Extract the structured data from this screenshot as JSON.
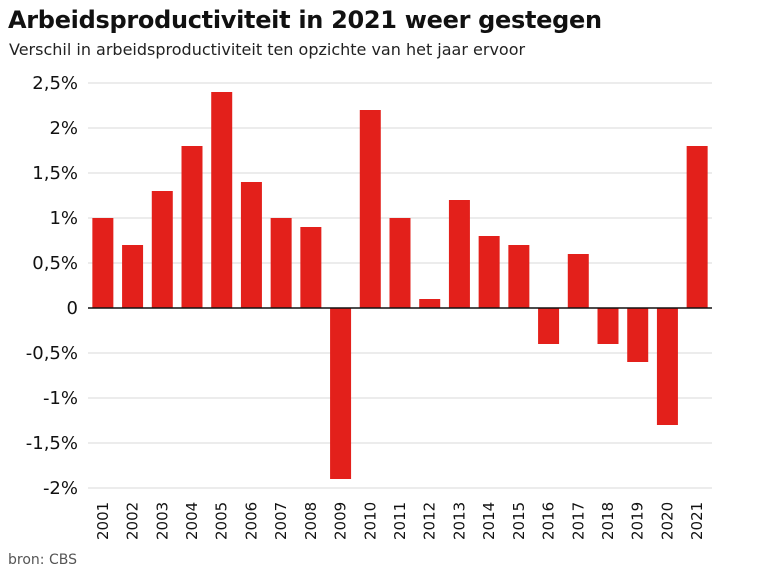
{
  "title": "Arbeidsproductiviteit in 2021 weer gestegen",
  "subtitle": "Verschil in arbeidsproductiviteit ten opzichte van het jaar ervoor",
  "source": "bron: CBS",
  "colors": {
    "bar": "#e3201b",
    "grid": "#d9d9d9",
    "axis": "#111111"
  },
  "chart_data": {
    "type": "bar",
    "categories": [
      "2001",
      "2002",
      "2003",
      "2004",
      "2005",
      "2006",
      "2007",
      "2008",
      "2009",
      "2010",
      "2011",
      "2012",
      "2013",
      "2014",
      "2015",
      "2016",
      "2017",
      "2018",
      "2019",
      "2020",
      "2021"
    ],
    "values": [
      1.0,
      0.7,
      1.3,
      1.8,
      2.4,
      1.4,
      1.0,
      0.9,
      -1.9,
      2.2,
      1.0,
      0.1,
      1.2,
      0.8,
      0.7,
      -0.4,
      0.6,
      -0.4,
      -0.6,
      -1.3,
      1.8
    ],
    "ylim": [
      -2,
      2.5
    ],
    "yticks": [
      2.5,
      2,
      1.5,
      1,
      0.5,
      0,
      -0.5,
      -1,
      -1.5,
      -2
    ],
    "ytick_labels": [
      "2,5%",
      "2%",
      "1,5%",
      "1%",
      "0,5%",
      "0",
      "-0,5%",
      "-1%",
      "-1,5%",
      "-2%"
    ],
    "grid": true,
    "legend": "none"
  }
}
